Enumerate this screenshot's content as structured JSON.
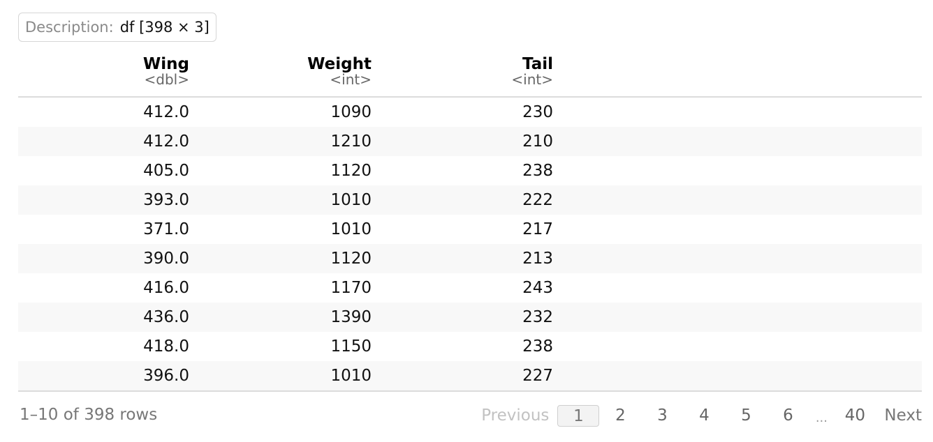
{
  "description": {
    "label": "Description:",
    "value": "df [398 × 3]"
  },
  "table": {
    "columns": [
      {
        "name": "Wing",
        "type": "<dbl>"
      },
      {
        "name": "Weight",
        "type": "<int>"
      },
      {
        "name": "Tail",
        "type": "<int>"
      }
    ],
    "rows": [
      [
        "412.0",
        "1090",
        "230"
      ],
      [
        "412.0",
        "1210",
        "210"
      ],
      [
        "405.0",
        "1120",
        "238"
      ],
      [
        "393.0",
        "1010",
        "222"
      ],
      [
        "371.0",
        "1010",
        "217"
      ],
      [
        "390.0",
        "1120",
        "213"
      ],
      [
        "416.0",
        "1170",
        "243"
      ],
      [
        "436.0",
        "1390",
        "232"
      ],
      [
        "418.0",
        "1150",
        "238"
      ],
      [
        "396.0",
        "1010",
        "227"
      ]
    ]
  },
  "footer": {
    "row_info": "1–10 of 398 rows",
    "previous_label": "Previous",
    "pages": [
      "1",
      "2",
      "3",
      "4",
      "5",
      "6"
    ],
    "current_page": "1",
    "ellipsis": "...",
    "last_page": "40",
    "next_label": "Next"
  }
}
